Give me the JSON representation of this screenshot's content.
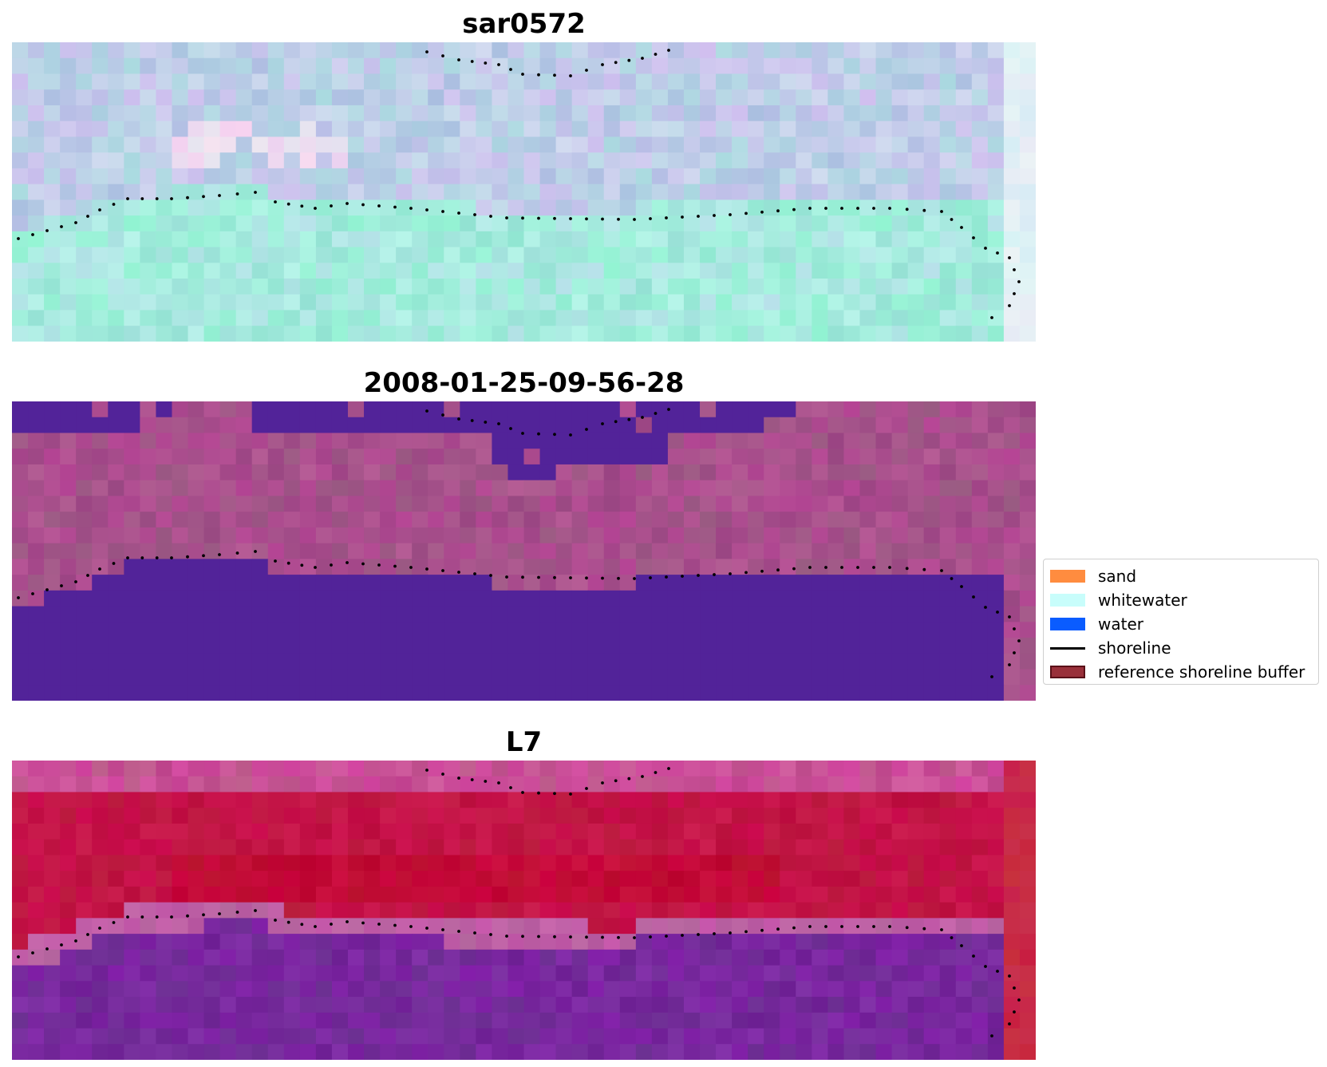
{
  "panels": [
    {
      "title": "sar0572",
      "style": "sar"
    },
    {
      "title": "2008-01-25-09-56-28",
      "style": "classified"
    },
    {
      "title": "L7",
      "style": "landsat"
    }
  ],
  "legend": {
    "items": [
      {
        "label": "sand",
        "kind": "patch",
        "color": "#ff8c3f"
      },
      {
        "label": "whitewater",
        "kind": "patch",
        "color": "#c8fdfb"
      },
      {
        "label": "water",
        "kind": "patch",
        "color": "#0a5cff"
      },
      {
        "label": "shoreline",
        "kind": "line",
        "color": "#000000"
      },
      {
        "label": "reference shoreline buffer",
        "kind": "patch",
        "color": "#99303a",
        "edge": "#5a1018"
      }
    ]
  },
  "colors": {
    "classified_water_mask": "#522399",
    "shoreline_dots": "#000000"
  }
}
